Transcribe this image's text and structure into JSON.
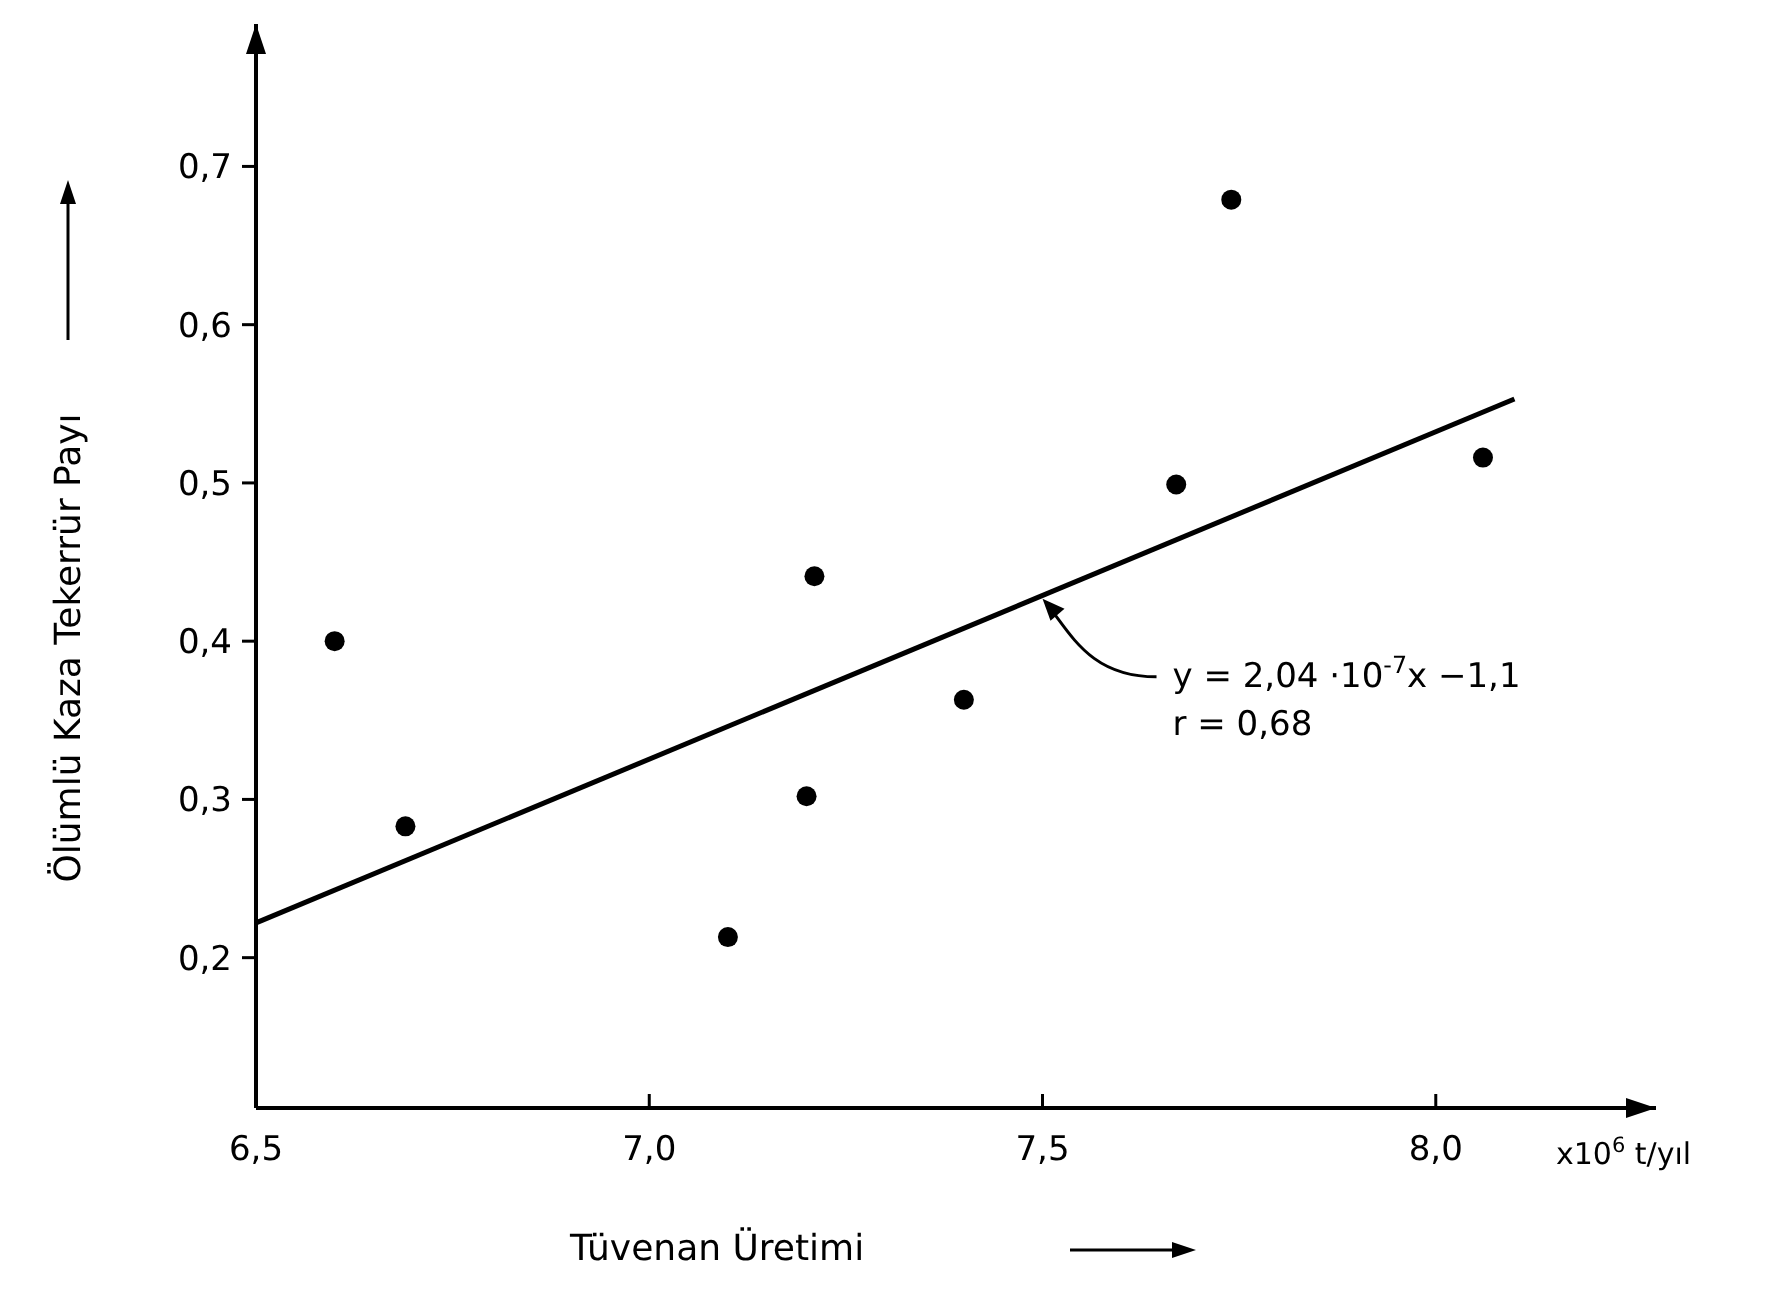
{
  "chart_data": {
    "type": "scatter",
    "xlabel": "Tüvenan Üretimi",
    "ylabel": "Ölümlü Kaza Tekerrür Payı",
    "xlim": [
      6.5,
      8.28
    ],
    "ylim": [
      0.105,
      0.79
    ],
    "xticks": [
      {
        "value": 6.5,
        "label": "6,5"
      },
      {
        "value": 7.0,
        "label": "7,0"
      },
      {
        "value": 7.5,
        "label": "7,5"
      },
      {
        "value": 8.0,
        "label": "8,0"
      }
    ],
    "yticks": [
      {
        "value": 0.2,
        "label": "0,2"
      },
      {
        "value": 0.3,
        "label": "0,3"
      },
      {
        "value": 0.4,
        "label": "0,4"
      },
      {
        "value": 0.5,
        "label": "0,5"
      },
      {
        "value": 0.6,
        "label": "0,6"
      },
      {
        "value": 0.7,
        "label": "0,7"
      }
    ],
    "series": [
      {
        "marker": "circle",
        "color": "#000000",
        "x": [
          6.6,
          6.69,
          7.1,
          7.2,
          7.21,
          7.4,
          7.67,
          7.74,
          8.06
        ],
        "values": [
          0.4,
          0.283,
          0.213,
          0.302,
          0.441,
          0.363,
          0.499,
          0.679,
          0.516
        ]
      },
      {
        "type": "line",
        "color": "#000000",
        "x": [
          6.5,
          8.1
        ],
        "values": [
          0.222,
          0.553
        ]
      }
    ],
    "annotations": [
      {
        "text": "y = 2,04 ·10$^{-7}$x −1,1",
        "x": 7.5,
        "y": 0.428
      },
      "r = 0,68",
      "x10$^{6}$ t/yıl"
    ]
  }
}
